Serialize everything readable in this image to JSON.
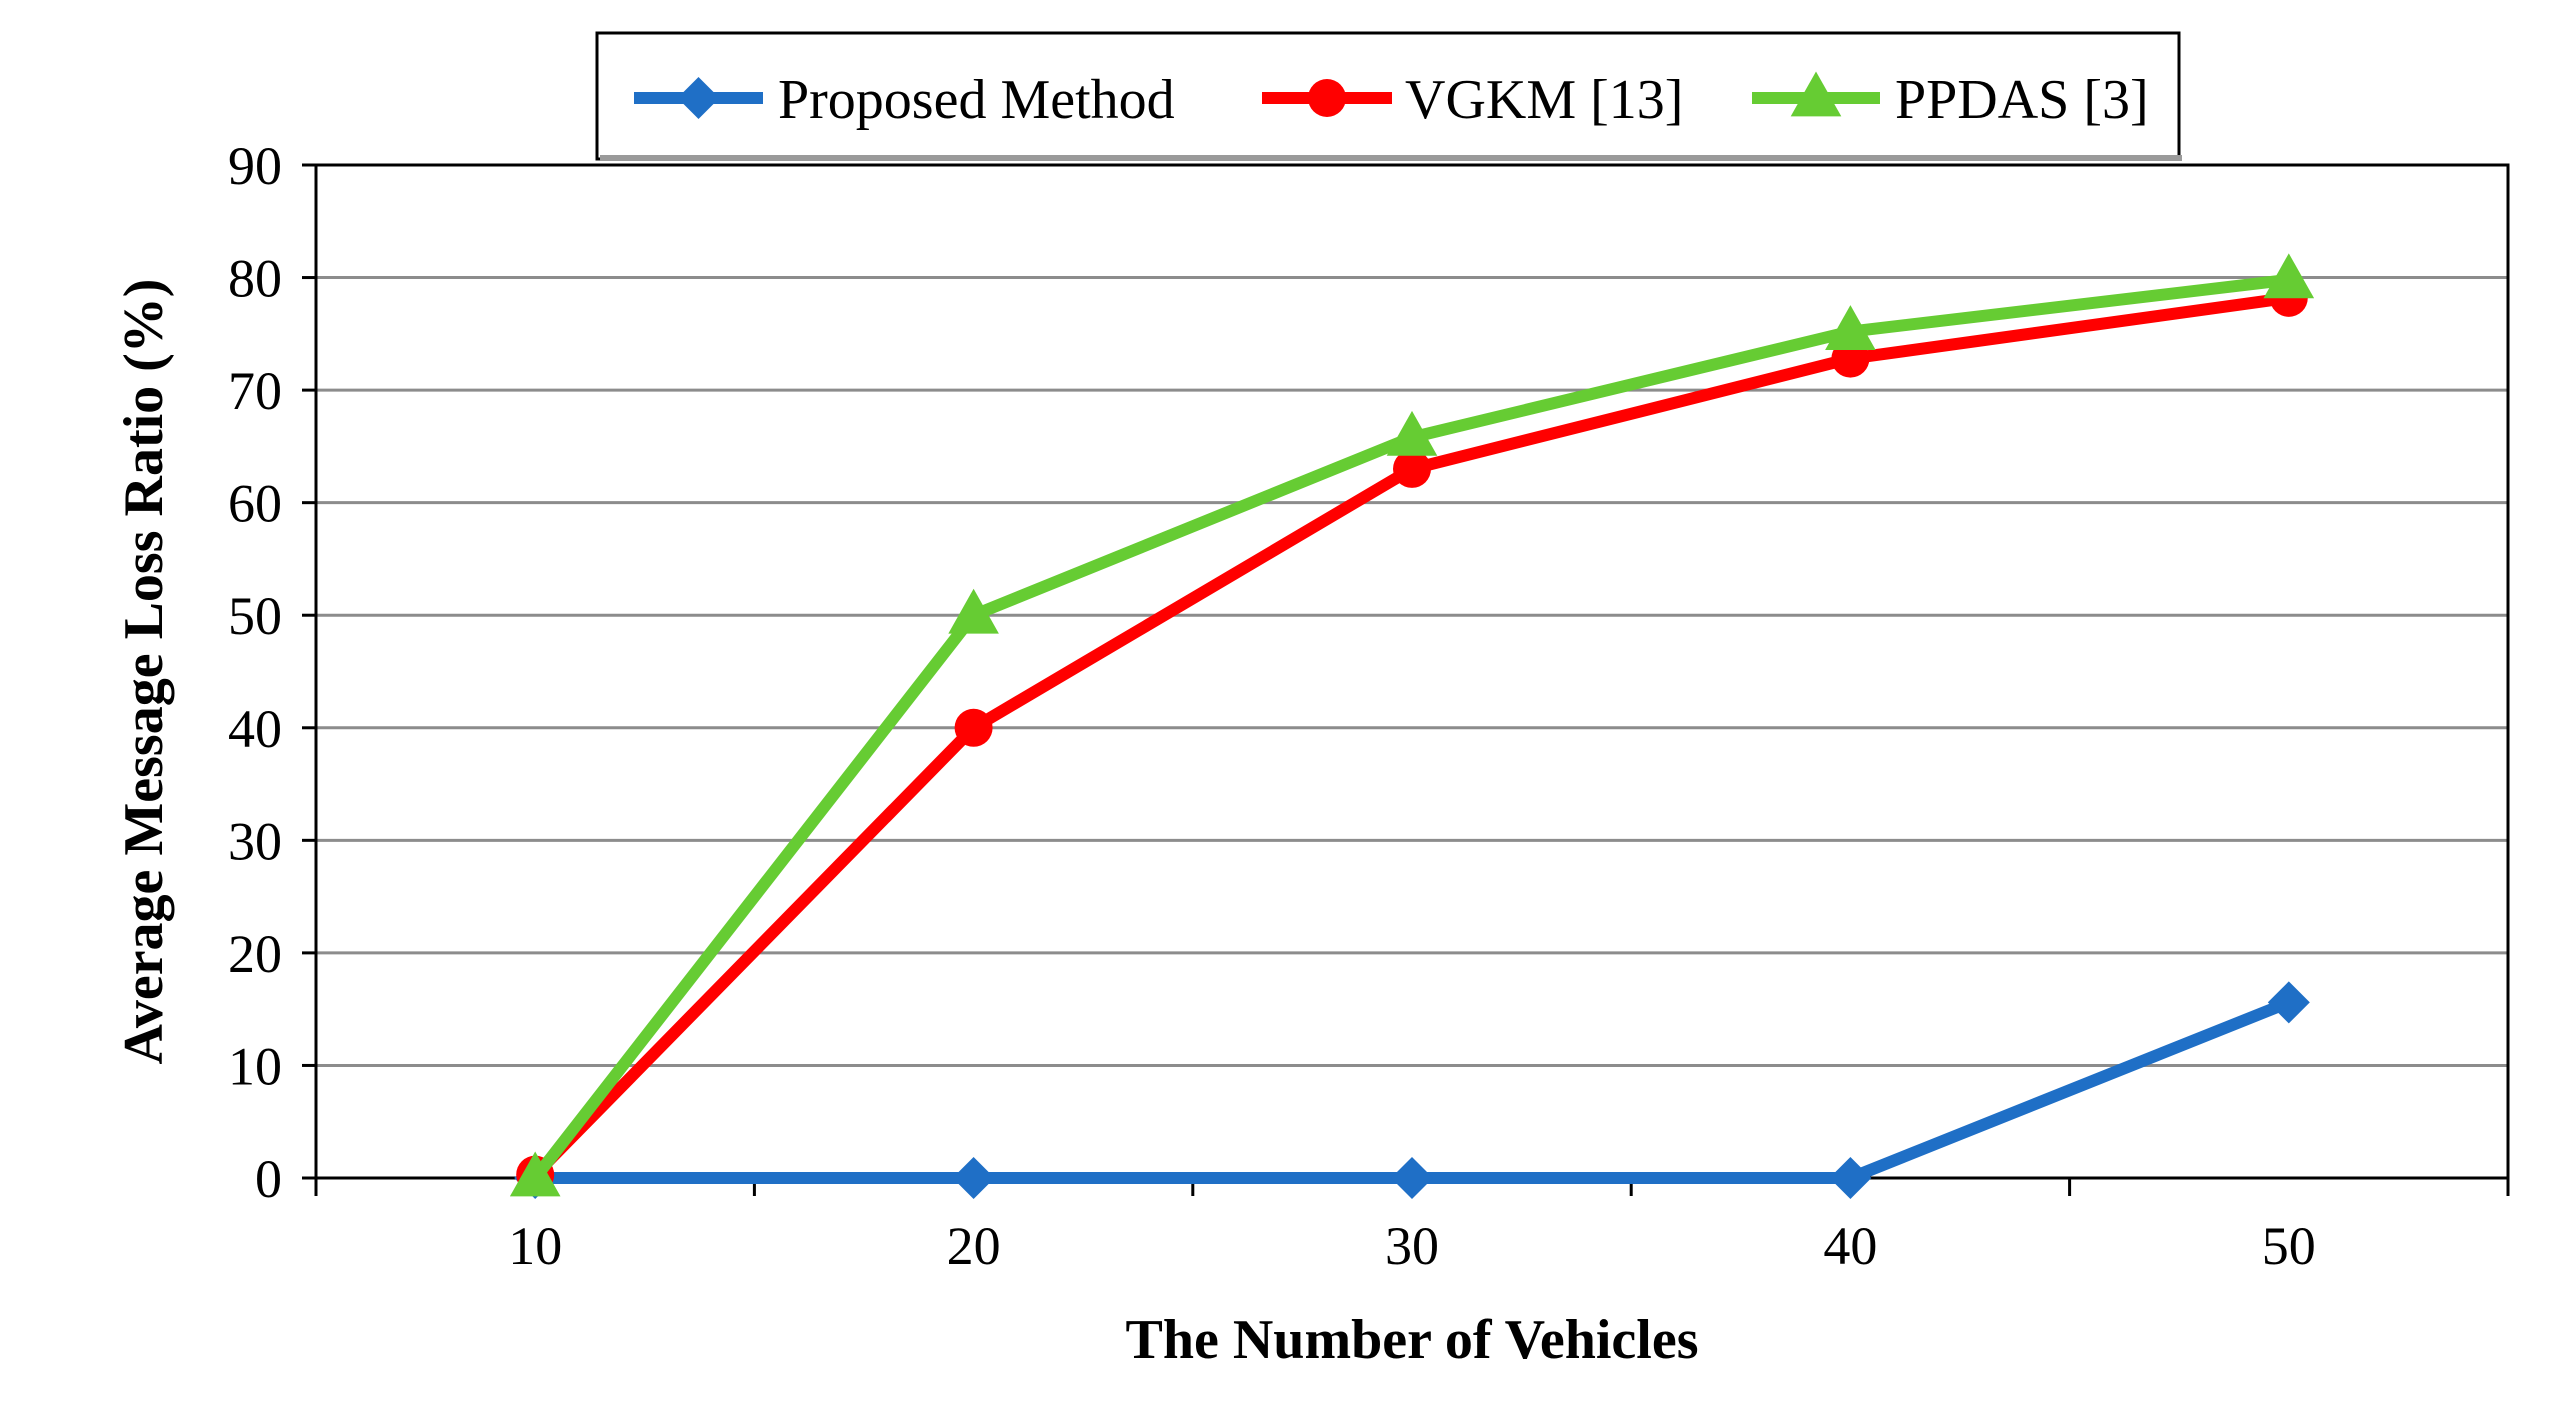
{
  "chart_data": {
    "type": "line",
    "title": "",
    "xlabel": "The Number  of Vehicles",
    "ylabel": "Average Message Loss Ratio (%)",
    "x": [
      10,
      20,
      30,
      40,
      50
    ],
    "x_tick_labels": [
      "10",
      "20",
      "30",
      "40",
      "50"
    ],
    "ylim": [
      0,
      90
    ],
    "y_ticks": [
      0,
      10,
      20,
      30,
      40,
      50,
      60,
      70,
      80,
      90
    ],
    "y_tick_labels": [
      "0",
      "10",
      "20",
      "30",
      "40",
      "50",
      "60",
      "70",
      "80",
      "90"
    ],
    "grid": true,
    "legend_position": "top",
    "series": [
      {
        "name": "Proposed Method",
        "values": [
          0,
          0,
          0,
          0,
          15.6
        ],
        "color": "#1f6fc6",
        "marker": "diamond"
      },
      {
        "name": "VGKM [13]",
        "values": [
          0.3,
          40,
          63,
          72.8,
          78.2
        ],
        "color": "#ff0000",
        "marker": "circle"
      },
      {
        "name": "PPDAS [3]",
        "values": [
          0,
          50,
          65.8,
          75.2,
          79.8
        ],
        "color": "#66cc33",
        "marker": "triangle"
      }
    ]
  }
}
